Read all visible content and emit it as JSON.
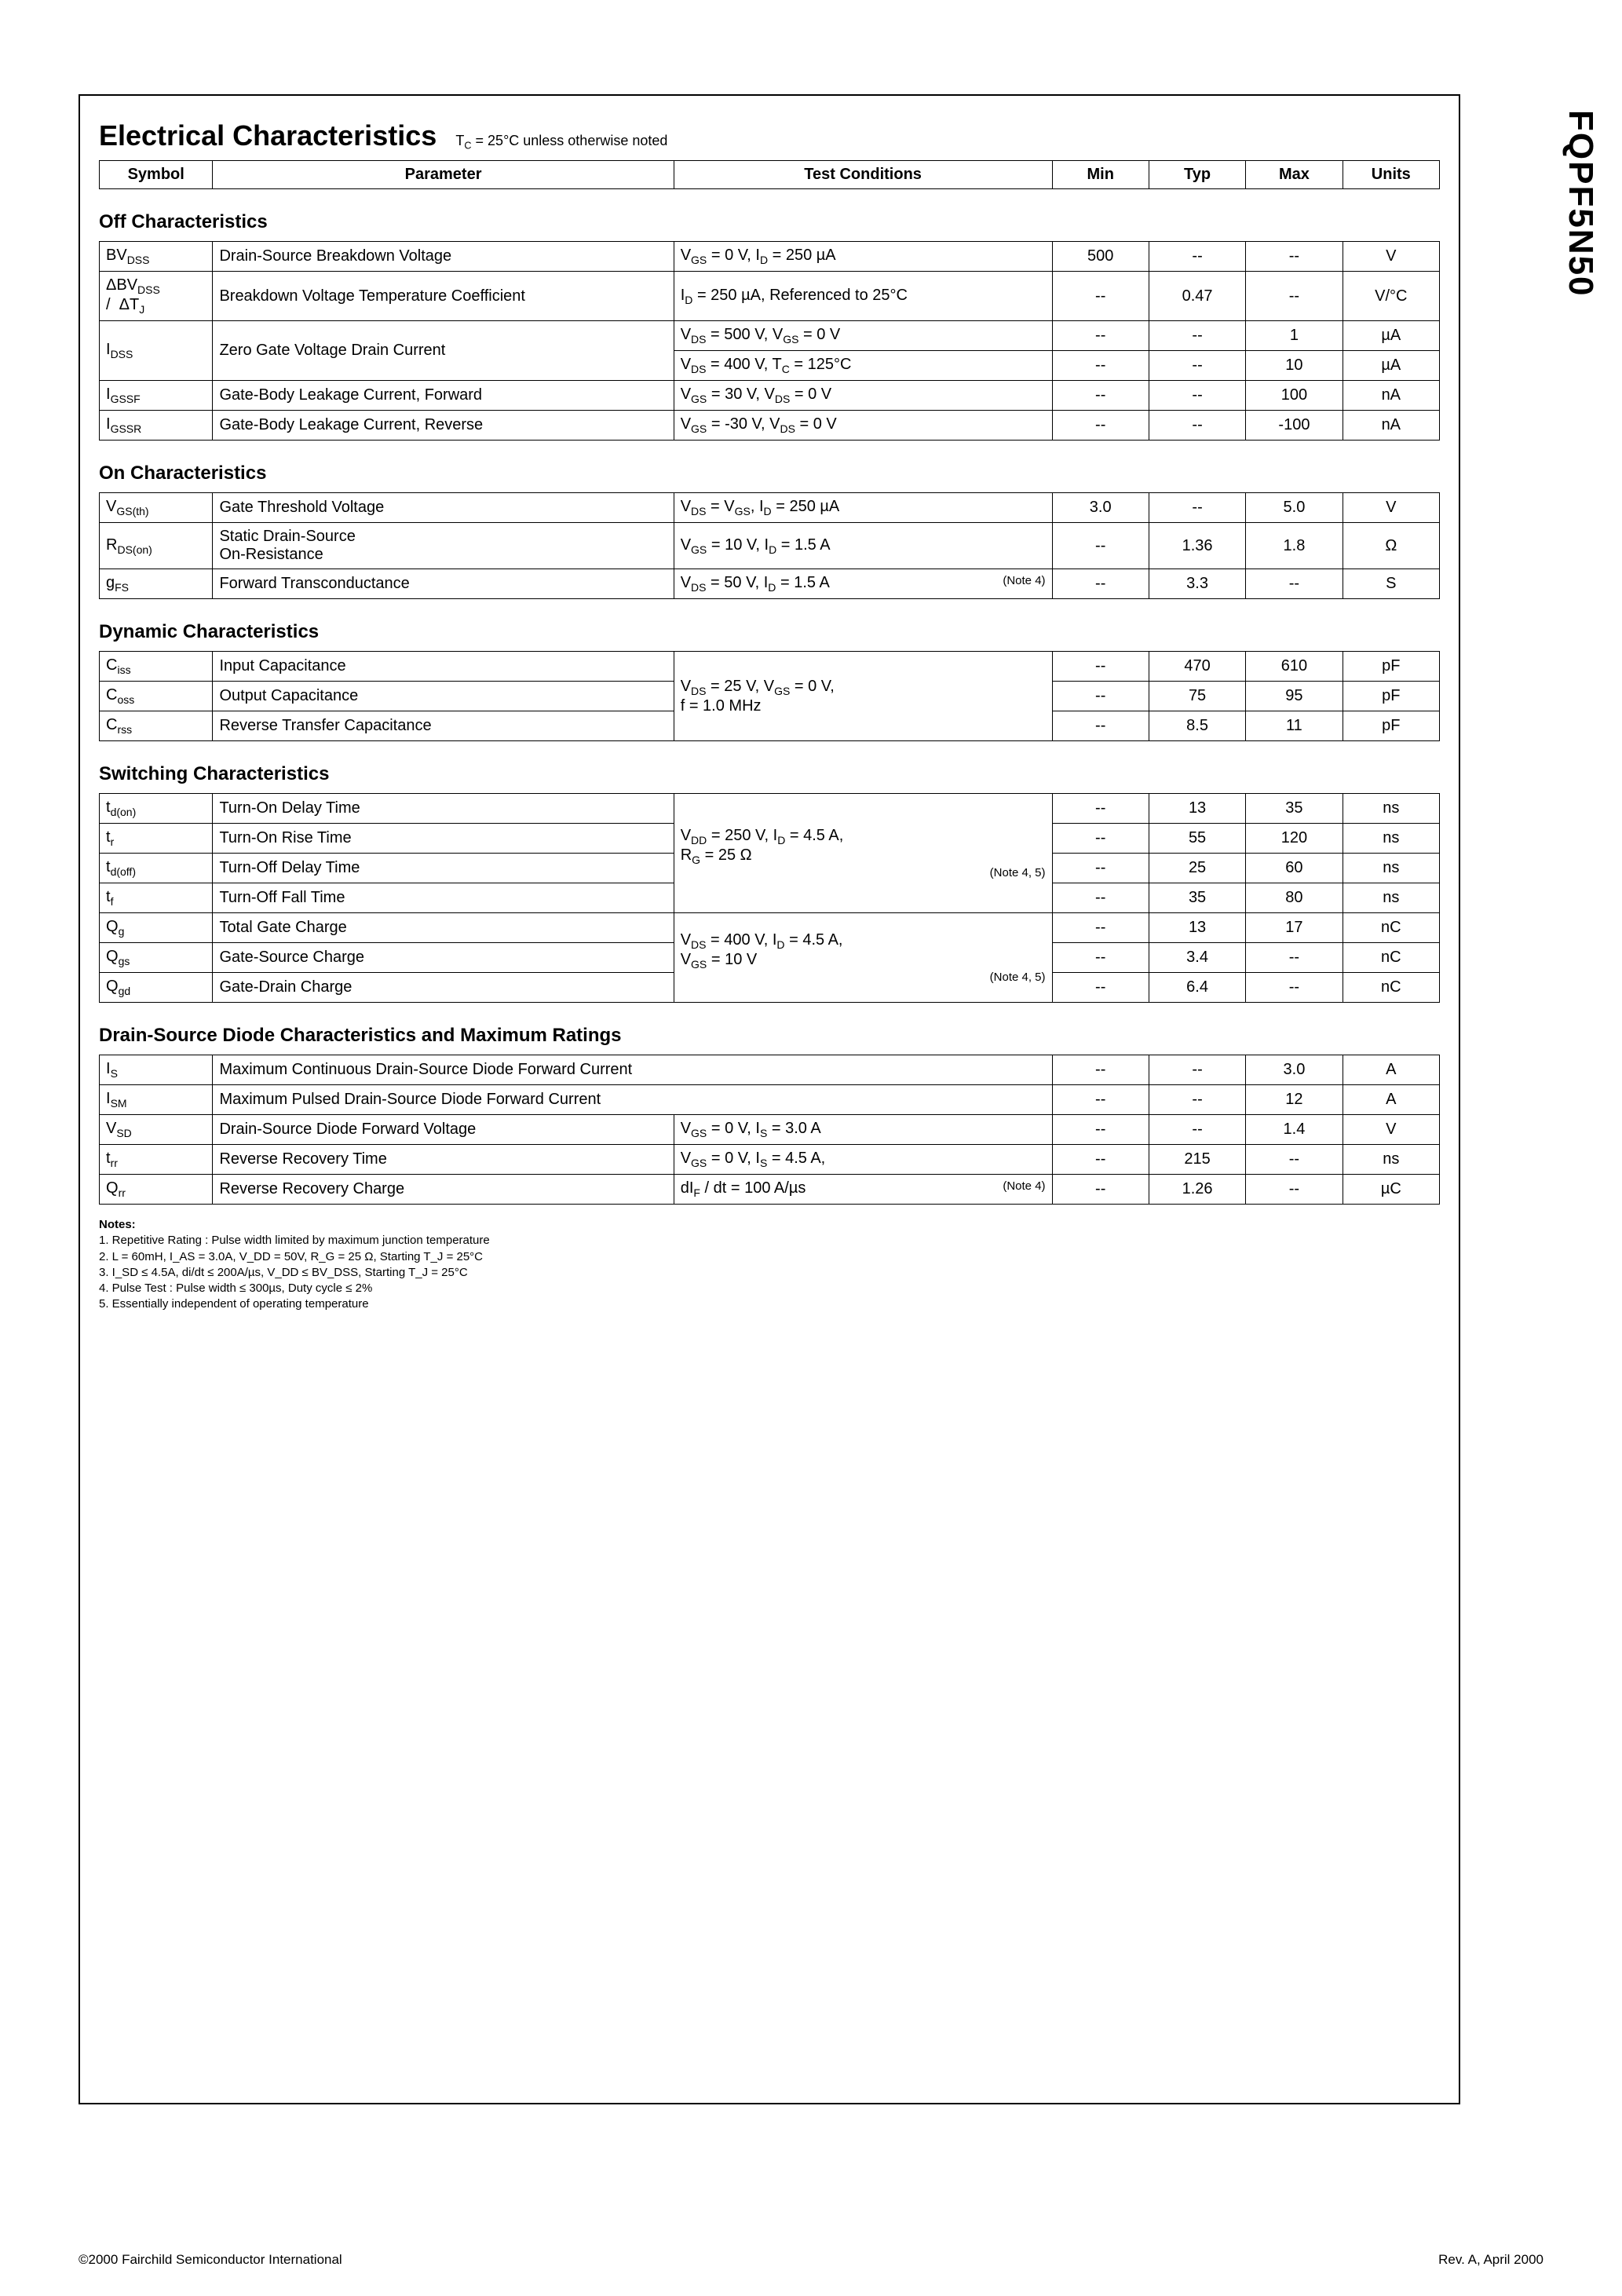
{
  "side_title": "FQPF5N50",
  "main_heading": "Electrical Characteristics",
  "main_sub": "T_C = 25°C unless otherwise noted",
  "header_row": {
    "symbol": "Symbol",
    "param": "Parameter",
    "cond": "Test Conditions",
    "min": "Min",
    "typ": "Typ",
    "max": "Max",
    "units": "Units"
  },
  "sections": {
    "off": {
      "title": "Off Characteristics",
      "rows": [
        {
          "symbol": "BV_DSS",
          "param": "Drain-Source Breakdown Voltage",
          "cond": "V_GS = 0 V, I_D = 250 µA",
          "min": "500",
          "typ": "--",
          "max": "--",
          "units": "V"
        },
        {
          "symbol": "ΔBV_DSS / ΔT_J",
          "param": "Breakdown Voltage Temperature Coefficient",
          "cond": "I_D = 250 µA, Referenced to 25°C",
          "min": "--",
          "typ": "0.47",
          "max": "--",
          "units": "V/°C"
        },
        {
          "symbol": "I_DSS",
          "param": "Zero Gate Voltage Drain Current",
          "cond": "V_DS = 500 V, V_GS = 0 V",
          "min": "--",
          "typ": "--",
          "max": "1",
          "units": "µA"
        },
        {
          "symbol": "",
          "param": "",
          "cond": "V_DS = 400 V, T_C = 125°C",
          "min": "--",
          "typ": "--",
          "max": "10",
          "units": "µA"
        },
        {
          "symbol": "I_GSSF",
          "param": "Gate-Body Leakage Current, Forward",
          "cond": "V_GS = 30 V, V_DS = 0 V",
          "min": "--",
          "typ": "--",
          "max": "100",
          "units": "nA"
        },
        {
          "symbol": "I_GSSR",
          "param": "Gate-Body Leakage Current, Reverse",
          "cond": "V_GS = -30 V, V_DS = 0 V",
          "min": "--",
          "typ": "--",
          "max": "-100",
          "units": "nA"
        }
      ]
    },
    "on": {
      "title": "On Characteristics",
      "rows": [
        {
          "symbol": "V_GS(th)",
          "param": "Gate Threshold Voltage",
          "cond": "V_DS = V_GS, I_D = 250 µA",
          "min": "3.0",
          "typ": "--",
          "max": "5.0",
          "units": "V"
        },
        {
          "symbol": "R_DS(on)",
          "param": "Static Drain-Source On-Resistance",
          "cond": "V_GS = 10 V, I_D = 1.5 A",
          "min": "--",
          "typ": "1.36",
          "max": "1.8",
          "units": "Ω"
        },
        {
          "symbol": "g_FS",
          "param": "Forward Transconductance",
          "cond": "V_DS = 50 V, I_D = 1.5 A",
          "note": "(Note 4)",
          "min": "--",
          "typ": "3.3",
          "max": "--",
          "units": "S"
        }
      ]
    },
    "dyn": {
      "title": "Dynamic Characteristics",
      "cond_shared": "V_DS = 25 V, V_GS = 0 V,\nf = 1.0 MHz",
      "rows": [
        {
          "symbol": "C_iss",
          "param": "Input Capacitance",
          "min": "--",
          "typ": "470",
          "max": "610",
          "units": "pF"
        },
        {
          "symbol": "C_oss",
          "param": "Output Capacitance",
          "min": "--",
          "typ": "75",
          "max": "95",
          "units": "pF"
        },
        {
          "symbol": "C_rss",
          "param": "Reverse Transfer Capacitance",
          "min": "--",
          "typ": "8.5",
          "max": "11",
          "units": "pF"
        }
      ]
    },
    "sw": {
      "title": "Switching Characteristics",
      "cond1": "V_DD = 250 V, I_D = 4.5 A,\nR_G = 25 Ω",
      "note1": "(Note 4, 5)",
      "cond2": "V_DS = 400 V, I_D = 4.5 A,\nV_GS = 10 V",
      "note2": "(Note 4, 5)",
      "rows": [
        {
          "symbol": "t_d(on)",
          "param": "Turn-On Delay Time",
          "min": "--",
          "typ": "13",
          "max": "35",
          "units": "ns"
        },
        {
          "symbol": "t_r",
          "param": "Turn-On Rise Time",
          "min": "--",
          "typ": "55",
          "max": "120",
          "units": "ns"
        },
        {
          "symbol": "t_d(off)",
          "param": "Turn-Off Delay Time",
          "min": "--",
          "typ": "25",
          "max": "60",
          "units": "ns"
        },
        {
          "symbol": "t_f",
          "param": "Turn-Off Fall Time",
          "min": "--",
          "typ": "35",
          "max": "80",
          "units": "ns"
        },
        {
          "symbol": "Q_g",
          "param": "Total Gate Charge",
          "min": "--",
          "typ": "13",
          "max": "17",
          "units": "nC"
        },
        {
          "symbol": "Q_gs",
          "param": "Gate-Source Charge",
          "min": "--",
          "typ": "3.4",
          "max": "--",
          "units": "nC"
        },
        {
          "symbol": "Q_gd",
          "param": "Gate-Drain Charge",
          "min": "--",
          "typ": "6.4",
          "max": "--",
          "units": "nC"
        }
      ]
    },
    "diode": {
      "title": "Drain-Source Diode Characteristics and Maximum Ratings",
      "rows": [
        {
          "symbol": "I_S",
          "param": "Maximum Continuous Drain-Source Diode Forward Current",
          "cond": "",
          "span": true,
          "min": "--",
          "typ": "--",
          "max": "3.0",
          "units": "A"
        },
        {
          "symbol": "I_SM",
          "param": "Maximum Pulsed Drain-Source Diode Forward Current",
          "cond": "",
          "span": true,
          "min": "--",
          "typ": "--",
          "max": "12",
          "units": "A"
        },
        {
          "symbol": "V_SD",
          "param": "Drain-Source Diode Forward Voltage",
          "cond": "V_GS = 0 V, I_S = 3.0 A",
          "min": "--",
          "typ": "--",
          "max": "1.4",
          "units": "V"
        },
        {
          "symbol": "t_rr",
          "param": "Reverse Recovery Time",
          "cond": "V_GS = 0 V, I_S = 4.5 A,",
          "min": "--",
          "typ": "215",
          "max": "--",
          "units": "ns"
        },
        {
          "symbol": "Q_rr",
          "param": "Reverse Recovery Charge",
          "cond": "dI_F / dt = 100 A/µs",
          "note": "(Note 4)",
          "min": "--",
          "typ": "1.26",
          "max": "--",
          "units": "µC"
        }
      ]
    }
  },
  "notes": {
    "title": "Notes:",
    "lines": [
      "1. Repetitive Rating : Pulse width limited by maximum junction temperature",
      "2. L = 60mH, I_AS = 3.0A, V_DD = 50V, R_G = 25 Ω, Starting T_J = 25°C",
      "3. I_SD ≤ 4.5A, di/dt ≤ 200A/µs, V_DD ≤ BV_DSS, Starting T_J = 25°C",
      "4. Pulse Test : Pulse width ≤ 300µs, Duty cycle ≤ 2%",
      "5. Essentially independent of operating temperature"
    ]
  },
  "footer_left": "©2000 Fairchild Semiconductor International",
  "footer_right": "Rev. A, April 2000"
}
